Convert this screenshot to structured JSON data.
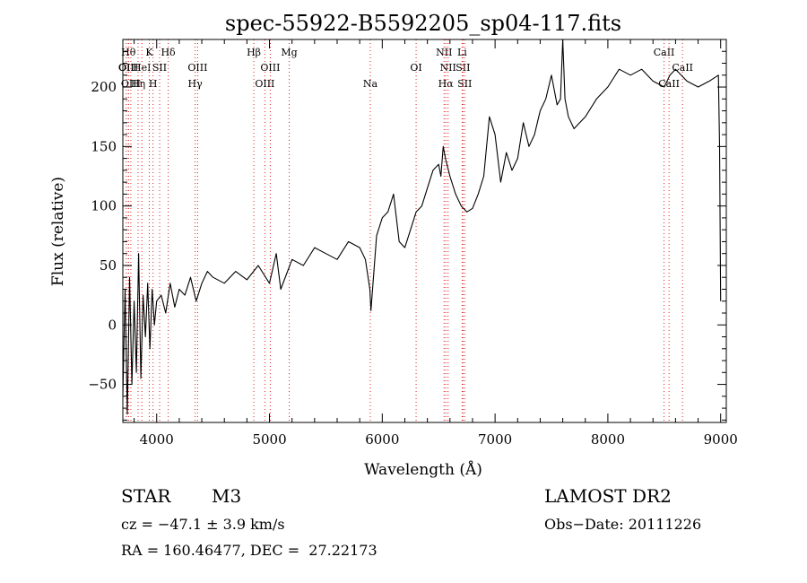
{
  "chart_data": {
    "type": "line",
    "title": "spec-55922-B5592205_sp04-117.fits",
    "xlabel": "Wavelength (Å)",
    "ylabel": "Flux (relative)",
    "xlim": [
      3700,
      9050
    ],
    "ylim": [
      -82,
      240
    ],
    "x_ticks": [
      4000,
      5000,
      6000,
      7000,
      8000,
      9000
    ],
    "y_ticks": [
      -50,
      0,
      50,
      100,
      150,
      200
    ],
    "grid": false,
    "series": [
      {
        "x": [
          3700,
          3720,
          3740,
          3760,
          3780,
          3800,
          3820,
          3840,
          3860,
          3880,
          3900,
          3920,
          3940,
          3960,
          3980,
          4000,
          4040,
          4080,
          4120,
          4160,
          4200,
          4250,
          4300,
          4350,
          4400,
          4450,
          4500,
          4600,
          4700,
          4800,
          4900,
          5000,
          5060,
          5100,
          5200,
          5300,
          5400,
          5500,
          5600,
          5700,
          5800,
          5850,
          5890,
          5900,
          5950,
          6000,
          6050,
          6100,
          6150,
          6200,
          6250,
          6300,
          6350,
          6400,
          6450,
          6500,
          6520,
          6540,
          6560,
          6600,
          6650,
          6700,
          6750,
          6800,
          6850,
          6900,
          6950,
          7000,
          7050,
          7100,
          7150,
          7200,
          7250,
          7300,
          7350,
          7400,
          7450,
          7500,
          7550,
          7580,
          7600,
          7620,
          7650,
          7700,
          7750,
          7800,
          7900,
          8000,
          8100,
          8200,
          8300,
          8400,
          8500,
          8550,
          8600,
          8700,
          8800,
          8900,
          8980,
          8990,
          9000
        ],
        "y": [
          -60,
          30,
          -75,
          40,
          -50,
          20,
          -40,
          60,
          -45,
          25,
          -10,
          35,
          -20,
          30,
          0,
          20,
          25,
          10,
          35,
          15,
          30,
          25,
          40,
          20,
          35,
          45,
          40,
          35,
          45,
          38,
          50,
          35,
          60,
          30,
          55,
          50,
          65,
          60,
          55,
          70,
          65,
          55,
          30,
          12,
          75,
          90,
          95,
          110,
          70,
          65,
          80,
          95,
          100,
          115,
          130,
          135,
          125,
          150,
          140,
          125,
          110,
          100,
          95,
          98,
          110,
          125,
          175,
          160,
          120,
          145,
          130,
          140,
          170,
          150,
          160,
          180,
          190,
          210,
          185,
          190,
          240,
          190,
          175,
          165,
          170,
          175,
          190,
          200,
          215,
          210,
          215,
          205,
          200,
          210,
          215,
          205,
          200,
          205,
          210,
          150,
          20
        ]
      }
    ],
    "line_markers": [
      {
        "x": 3730,
        "label": "OII",
        "row": 2
      },
      {
        "x": 3750,
        "label": "Hθ",
        "row": 1
      },
      {
        "x": 3750,
        "label": "OIII",
        "row": 2
      },
      {
        "x": 3771,
        "label": "OIII",
        "row": 3
      },
      {
        "x": 3835,
        "label": "Hη",
        "row": 3
      },
      {
        "x": 3869,
        "label": "HeI",
        "row": 2
      },
      {
        "x": 3934,
        "label": "K",
        "row": 1
      },
      {
        "x": 3968,
        "label": "H",
        "row": 3
      },
      {
        "x": 4026,
        "label": "SII",
        "row": 2
      },
      {
        "x": 4102,
        "label": "Hδ",
        "row": 1
      },
      {
        "x": 4341,
        "label": "Hγ",
        "row": 3
      },
      {
        "x": 4363,
        "label": "OIII",
        "row": 2
      },
      {
        "x": 4861,
        "label": "Hβ",
        "row": 1
      },
      {
        "x": 4959,
        "label": "OIII",
        "row": 3
      },
      {
        "x": 5007,
        "label": "OIII",
        "row": 2
      },
      {
        "x": 5175,
        "label": "Mg",
        "row": 1
      },
      {
        "x": 5894,
        "label": "Na",
        "row": 3
      },
      {
        "x": 6300,
        "label": "OI",
        "row": 2
      },
      {
        "x": 6548,
        "label": "NII",
        "row": 1
      },
      {
        "x": 6563,
        "label": "Hα",
        "row": 3
      },
      {
        "x": 6583,
        "label": "NII",
        "row": 2
      },
      {
        "x": 6716,
        "label": "SII",
        "row": 2
      },
      {
        "x": 6731,
        "label": "SII",
        "row": 3
      },
      {
        "x": 6708,
        "label": "Li",
        "row": 1
      },
      {
        "x": 8498,
        "label": "CaII",
        "row": 1
      },
      {
        "x": 8542,
        "label": "CaII",
        "row": 3
      },
      {
        "x": 8662,
        "label": "CaII",
        "row": 2
      }
    ]
  },
  "info": {
    "object_type": "STAR",
    "subclass": "M3",
    "survey": "LAMOST DR2",
    "cz": "cz = −47.1 ± 3.9 km/s",
    "obs_date": "Obs−Date: 20111226",
    "coords": "RA = 160.46477, DEC =  27.22173"
  },
  "colors": {
    "spectrum": "#000000",
    "line_markers": "#e02020",
    "axes": "#000000"
  }
}
